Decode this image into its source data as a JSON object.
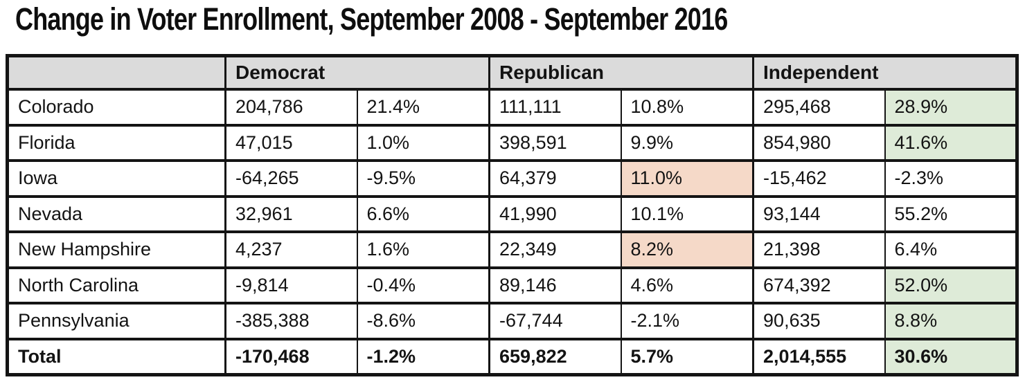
{
  "chart_data": {
    "type": "table",
    "title": "Change in Voter Enrollment, September 2008 - September 2016",
    "column_groups": [
      {
        "label": "",
        "span": 1
      },
      {
        "label": "Democrat",
        "span": 2
      },
      {
        "label": "Republican",
        "span": 2
      },
      {
        "label": "Independent",
        "span": 2
      }
    ],
    "columns": [
      "state",
      "dem_change",
      "dem_pct",
      "rep_change",
      "rep_pct",
      "ind_change",
      "ind_pct"
    ],
    "rows": [
      {
        "state": "Colorado",
        "dem_change": "204,786",
        "dem_pct": "21.4%",
        "rep_change": "111,111",
        "rep_pct": "10.8%",
        "ind_change": "295,468",
        "ind_pct": "28.9%"
      },
      {
        "state": "Florida",
        "dem_change": "47,015",
        "dem_pct": "1.0%",
        "rep_change": "398,591",
        "rep_pct": "9.9%",
        "ind_change": "854,980",
        "ind_pct": "41.6%"
      },
      {
        "state": "Iowa",
        "dem_change": "-64,265",
        "dem_pct": "-9.5%",
        "rep_change": "64,379",
        "rep_pct": "11.0%",
        "ind_change": "-15,462",
        "ind_pct": "-2.3%"
      },
      {
        "state": "Nevada",
        "dem_change": "32,961",
        "dem_pct": "6.6%",
        "rep_change": "41,990",
        "rep_pct": "10.1%",
        "ind_change": "93,144",
        "ind_pct": "55.2%"
      },
      {
        "state": "New Hampshire",
        "dem_change": "4,237",
        "dem_pct": "1.6%",
        "rep_change": "22,349",
        "rep_pct": "8.2%",
        "ind_change": "21,398",
        "ind_pct": "6.4%"
      },
      {
        "state": "North Carolina",
        "dem_change": "-9,814",
        "dem_pct": "-0.4%",
        "rep_change": "89,146",
        "rep_pct": "4.6%",
        "ind_change": "674,392",
        "ind_pct": "52.0%"
      },
      {
        "state": "Pennsylvania",
        "dem_change": "-385,388",
        "dem_pct": "-8.6%",
        "rep_change": "-67,744",
        "rep_pct": "-2.1%",
        "ind_change": "90,635",
        "ind_pct": "8.8%"
      },
      {
        "state": "Total",
        "dem_change": "-170,468",
        "dem_pct": "-1.2%",
        "rep_change": "659,822",
        "rep_pct": "5.7%",
        "ind_change": "2,014,555",
        "ind_pct": "30.6%"
      }
    ],
    "highlights": {
      "green_cells": [
        {
          "row": "Colorado",
          "column": "ind_pct"
        },
        {
          "row": "Florida",
          "column": "ind_pct"
        },
        {
          "row": "North Carolina",
          "column": "ind_pct"
        },
        {
          "row": "Pennsylvania",
          "column": "ind_pct"
        },
        {
          "row": "Total",
          "column": "ind_pct"
        }
      ],
      "salmon_cells": [
        {
          "row": "Iowa",
          "column": "rep_pct"
        },
        {
          "row": "New Hampshire",
          "column": "rep_pct"
        }
      ]
    },
    "layout": {
      "grid": true,
      "legend": "none"
    }
  },
  "colors": {
    "header_bg": "#dbdbdb",
    "highlight_green": "#deebd8",
    "highlight_salmon": "#f5d9c8",
    "border": "#141414",
    "text": "#131313",
    "background": "#ffffff"
  }
}
